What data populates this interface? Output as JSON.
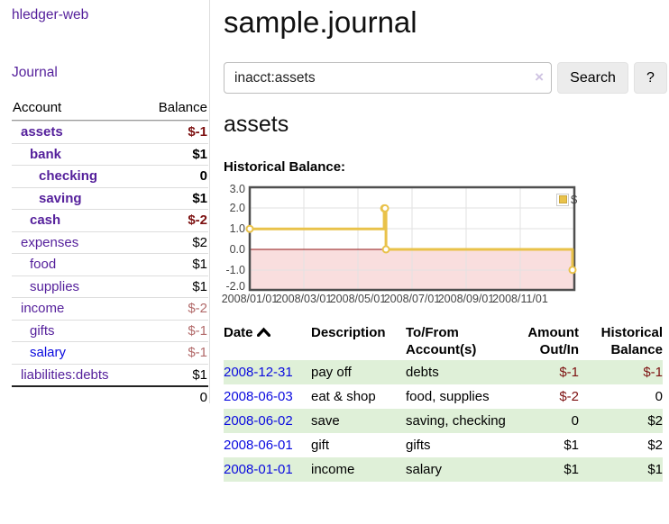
{
  "app_title": "hledger-web",
  "sidebar": {
    "journal_link": "Journal",
    "account_header": "Account",
    "balance_header": "Balance",
    "rows": [
      {
        "label": "assets",
        "balance": "$-1"
      },
      {
        "label": "bank",
        "balance": "$1"
      },
      {
        "label": "checking",
        "balance": "0"
      },
      {
        "label": "saving",
        "balance": "$1"
      },
      {
        "label": "cash",
        "balance": "$-2"
      },
      {
        "label": "expenses",
        "balance": "$2"
      },
      {
        "label": "food",
        "balance": "$1"
      },
      {
        "label": "supplies",
        "balance": "$1"
      },
      {
        "label": "income",
        "balance": "$-2"
      },
      {
        "label": "gifts",
        "balance": "$-1"
      },
      {
        "label": "salary",
        "balance": "$-1"
      },
      {
        "label": "liabilities:debts",
        "balance": "$1"
      }
    ],
    "total": "0"
  },
  "main": {
    "title": "sample.journal",
    "search": {
      "value": "inacct:assets",
      "clear_label": "×",
      "search_button": "Search",
      "help_button": "?"
    },
    "account_heading": "assets",
    "chart_label": "Historical Balance:"
  },
  "chart_data": {
    "type": "line",
    "step": true,
    "title": "Historical Balance",
    "series": [
      {
        "name": "$",
        "points": [
          [
            "2008-01-01",
            1
          ],
          [
            "2008-06-01",
            2
          ],
          [
            "2008-06-02",
            2
          ],
          [
            "2008-06-03",
            0
          ],
          [
            "2008-12-31",
            -1
          ]
        ]
      }
    ],
    "x_tick_labels": [
      "2008/01/01",
      "2008/03/01",
      "2008/05/01",
      "2008/07/01",
      "2008/09/01",
      "2008/11/01"
    ],
    "y_tick_labels": [
      "3.0",
      "2.0",
      "1.0",
      "0.0",
      "-1.0",
      "-2.0"
    ],
    "ylim": [
      -2,
      3
    ],
    "grid": true,
    "legend_position": "top-right",
    "colors": {
      "series": "#e9c24a",
      "negative_fill": "#f9dede",
      "zero_line": "#8f1010"
    }
  },
  "register": {
    "headers": {
      "date": "Date",
      "description": "Description",
      "accounts": "To/From Account(s)",
      "amount": "Amount Out/In",
      "balance": "Historical Balance"
    },
    "rows": [
      {
        "date": "2008-12-31",
        "description": "pay off",
        "accounts": "debts",
        "amount": "$-1",
        "balance": "$-1"
      },
      {
        "date": "2008-06-03",
        "description": "eat & shop",
        "accounts": "food, supplies",
        "amount": "$-2",
        "balance": "0"
      },
      {
        "date": "2008-06-02",
        "description": "save",
        "accounts": "saving, checking",
        "amount": "0",
        "balance": "$2"
      },
      {
        "date": "2008-06-01",
        "description": "gift",
        "accounts": "gifts",
        "amount": "$1",
        "balance": "$2"
      },
      {
        "date": "2008-01-01",
        "description": "income",
        "accounts": "salary",
        "amount": "$1",
        "balance": "$1"
      }
    ]
  },
  "colors": {
    "link_purple": "#541f9b",
    "link_blue": "#0a0adf",
    "negative": "#7d1111",
    "negative_soft": "#b26a6a",
    "row_green": "#dff0d8",
    "button_bg": "#ececec"
  }
}
